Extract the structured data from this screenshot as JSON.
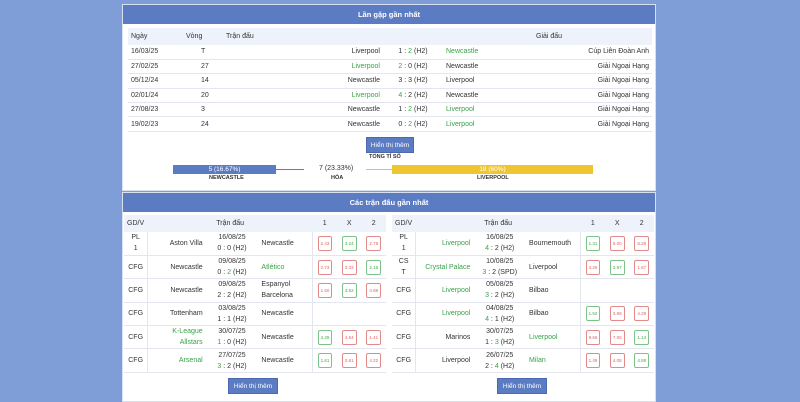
{
  "h2h": {
    "title": "Lần gặp gần nhất",
    "headers": [
      "Ngày",
      "Vòng",
      "Trận đấu",
      "Giải đấu"
    ],
    "rows": [
      {
        "date": "16/03/25",
        "round": "T",
        "home": "Liverpool",
        "hs": "1",
        "as": "2",
        "note": "(H2)",
        "away": "Newcastle",
        "league": "Cúp Liên Đoàn Anh",
        "win": "away"
      },
      {
        "date": "27/02/25",
        "round": "27",
        "home": "Liverpool",
        "hs": "2",
        "as": "0",
        "note": "(H2)",
        "away": "Newcastle",
        "league": "Giải Ngoại Hạng",
        "win": "home"
      },
      {
        "date": "05/12/24",
        "round": "14",
        "home": "Newcastle",
        "hs": "3",
        "as": "3",
        "note": "(H2)",
        "away": "Liverpool",
        "league": "Giải Ngoại Hạng",
        "win": "none"
      },
      {
        "date": "02/01/24",
        "round": "20",
        "home": "Liverpool",
        "hs": "4",
        "as": "2",
        "note": "(H2)",
        "away": "Newcastle",
        "league": "Giải Ngoại Hạng",
        "win": "home"
      },
      {
        "date": "27/08/23",
        "round": "3",
        "home": "Newcastle",
        "hs": "1",
        "as": "2",
        "note": "(H2)",
        "away": "Liverpool",
        "league": "Giải Ngoại Hạng",
        "win": "away"
      },
      {
        "date": "19/02/23",
        "round": "24",
        "home": "Newcastle",
        "hs": "0",
        "as": "2",
        "note": "(H2)",
        "away": "Liverpool",
        "league": "Giải Ngoại Hạng",
        "win": "away"
      }
    ],
    "more": "Hiển thị thêm",
    "summary": {
      "title": "TỔNG TỈ SỐ",
      "home": {
        "value": "5 (16.67%)",
        "label": "NEWCASTLE",
        "pct": 16.67,
        "color": "#5b7bc2"
      },
      "draw": {
        "value": "7 (23.33%)",
        "label": "HÒA",
        "pct": 23.33
      },
      "away": {
        "value": "18 (60%)",
        "label": "LIVERPOOL",
        "pct": 60,
        "color": "#f0c630"
      }
    }
  },
  "recent": {
    "title": "Các trận đấu gần nhất",
    "headers": [
      "GD/V",
      "Trận đấu",
      "1",
      "X",
      "2"
    ],
    "more": "Hiển thị thêm",
    "tables": [
      {
        "rows": [
          {
            "comp": "PL\n1",
            "home": "Aston Villa",
            "date": "16/08/25",
            "hs": "0",
            "as": "0",
            "note": "(H2)",
            "away": "Newcastle",
            "win": "none",
            "odds": [
              [
                "2.43",
                "red"
              ],
              [
                "3.24",
                "green"
              ],
              [
                "2.78",
                "red"
              ]
            ]
          },
          {
            "comp": "CFG",
            "home": "Newcastle",
            "date": "09/08/25",
            "hs": "0",
            "as": "2",
            "note": "(H2)",
            "away": "Atlético",
            "win": "away",
            "odds": [
              [
                "2.73",
                "red"
              ],
              [
                "3.33",
                "red"
              ],
              [
                "2.16",
                "green"
              ]
            ]
          },
          {
            "comp": "CFG",
            "home": "Newcastle",
            "date": "09/08/25",
            "hs": "2",
            "as": "2",
            "note": "(H2)",
            "away": "Espanyol Barcelona",
            "win": "none",
            "odds": [
              [
                "1.60",
                "red"
              ],
              [
                "3.62",
                "green"
              ],
              [
                "4.88",
                "red"
              ]
            ]
          },
          {
            "comp": "CFG",
            "home": "Tottenham",
            "date": "03/08/25",
            "hs": "1",
            "as": "1",
            "note": "(H2)",
            "away": "Newcastle",
            "win": "none",
            "odds": []
          },
          {
            "comp": "CFG",
            "home": "K-League Allstars",
            "date": "30/07/25",
            "hs": "1",
            "as": "0",
            "note": "(H2)",
            "away": "Newcastle",
            "win": "home",
            "odds": [
              [
                "4.29",
                "green"
              ],
              [
                "4.64",
                "red"
              ],
              [
                "1.41",
                "red"
              ]
            ]
          },
          {
            "comp": "CFG",
            "home": "Arsenal",
            "date": "27/07/25",
            "hs": "3",
            "as": "2",
            "note": "(H2)",
            "away": "Newcastle",
            "win": "home",
            "odds": [
              [
                "1.61",
                "green"
              ],
              [
                "3.61",
                "red"
              ],
              [
                "4.22",
                "red"
              ]
            ]
          }
        ]
      },
      {
        "rows": [
          {
            "comp": "PL\n1",
            "home": "Liverpool",
            "date": "16/08/25",
            "hs": "4",
            "as": "2",
            "note": "(H2)",
            "away": "Bournemouth",
            "win": "home",
            "odds": [
              [
                "1.31",
                "green"
              ],
              [
                "6.00",
                "red"
              ],
              [
                "8.29",
                "red"
              ]
            ]
          },
          {
            "comp": "CS\nT",
            "home": "Crystal Palace",
            "date": "10/08/25",
            "hs": "3",
            "as": "2",
            "note": "(SPD)",
            "away": "Liverpool",
            "win": "home",
            "odds": [
              [
                "4.26",
                "red"
              ],
              [
                "3.97",
                "green"
              ],
              [
                "1.67",
                "red"
              ]
            ]
          },
          {
            "comp": "CFG",
            "home": "Liverpool",
            "date": "05/08/25",
            "hs": "3",
            "as": "2",
            "note": "(H2)",
            "away": "Bilbao",
            "win": "home",
            "odds": []
          },
          {
            "comp": "CFG",
            "home": "Liverpool",
            "date": "04/08/25",
            "hs": "4",
            "as": "1",
            "note": "(H2)",
            "away": "Bilbao",
            "win": "home",
            "odds": [
              [
                "1.52",
                "green"
              ],
              [
                "3.99",
                "red"
              ],
              [
                "4.29",
                "red"
              ]
            ]
          },
          {
            "comp": "CFG",
            "home": "Marinos",
            "date": "30/07/25",
            "hs": "1",
            "as": "3",
            "note": "(H2)",
            "away": "Liverpool",
            "win": "away",
            "odds": [
              [
                "9.66",
                "red"
              ],
              [
                "7.00",
                "red"
              ],
              [
                "1.14",
                "green"
              ]
            ]
          },
          {
            "comp": "CFG",
            "home": "Liverpool",
            "date": "26/07/25",
            "hs": "2",
            "as": "4",
            "note": "(H2)",
            "away": "Milan",
            "win": "away",
            "odds": [
              [
                "1.49",
                "red"
              ],
              [
                "4.08",
                "red"
              ],
              [
                "4.88",
                "green"
              ]
            ]
          }
        ]
      }
    ]
  }
}
